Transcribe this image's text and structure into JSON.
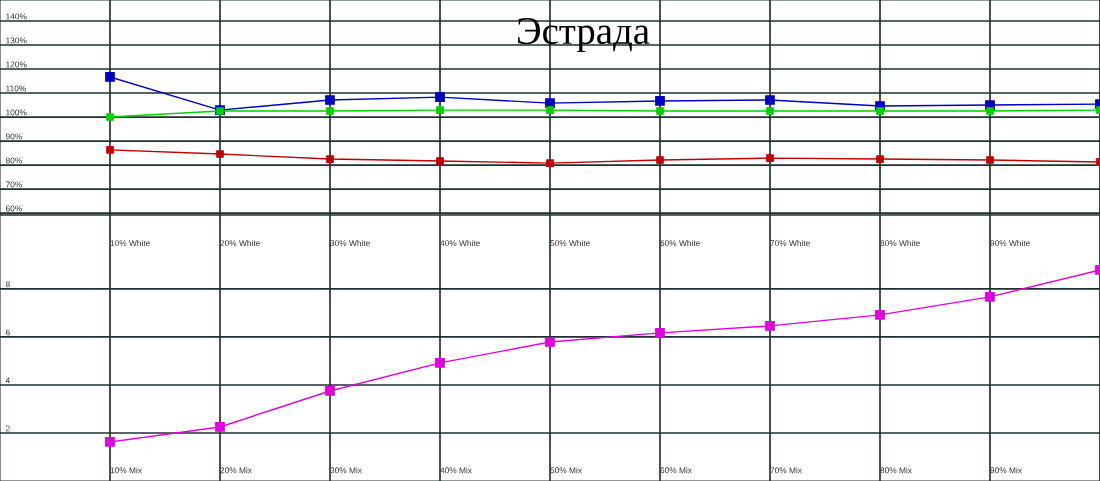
{
  "chart_data": [
    {
      "type": "line",
      "title": "Эстрада",
      "categories": [
        "10% White",
        "20% White",
        "30% White",
        "40% White",
        "50% White",
        "60% White",
        "70% White",
        "80% White",
        "90% White",
        null
      ],
      "series": [
        {
          "color": "#0000c0",
          "values": [
            116.7,
            102.9,
            107.1,
            108.3,
            105.8,
            106.7,
            107.1,
            104.6,
            105,
            105.4
          ]
        },
        {
          "color": "#00d000",
          "values": [
            100,
            102.5,
            102.5,
            102.9,
            102.9,
            102.5,
            102.5,
            102.5,
            102.5,
            102.9
          ]
        },
        {
          "color": "#c00000",
          "values": [
            86.3,
            84.6,
            82.5,
            81.7,
            80.8,
            82.1,
            82.9,
            82.5,
            82.1,
            81.3
          ]
        }
      ],
      "ylim": [
        59.2,
        148.75
      ],
      "yticks": [
        {
          "value": 60,
          "label": "60%"
        },
        {
          "value": 70,
          "label": "70%"
        },
        {
          "value": 80,
          "label": "80%"
        },
        {
          "value": 90,
          "label": "90%"
        },
        {
          "value": 100,
          "label": "100%"
        },
        {
          "value": 110,
          "label": "110%"
        },
        {
          "value": 120,
          "label": "120%"
        },
        {
          "value": 130,
          "label": "130%"
        },
        {
          "value": 140,
          "label": "140%"
        }
      ],
      "grid": true,
      "marker": "square",
      "line_style": "solid"
    },
    {
      "type": "line",
      "categories": [
        "10% Mix",
        "20% Mix",
        "30% Mix",
        "40% Mix",
        "50% Mix",
        "60% Mix",
        "70% Mix",
        "80% Mix",
        "90% Mix",
        null
      ],
      "series": [
        {
          "color": "#e000e0",
          "values": [
            1.63,
            2.25,
            3.75,
            4.92,
            5.79,
            6.17,
            6.46,
            6.92,
            7.67,
            8.79
          ]
        }
      ],
      "ylim": [
        0,
        11.08
      ],
      "yticks": [
        2,
        4,
        6,
        8
      ],
      "grid": true,
      "marker": "square",
      "line_style": "solid"
    }
  ]
}
